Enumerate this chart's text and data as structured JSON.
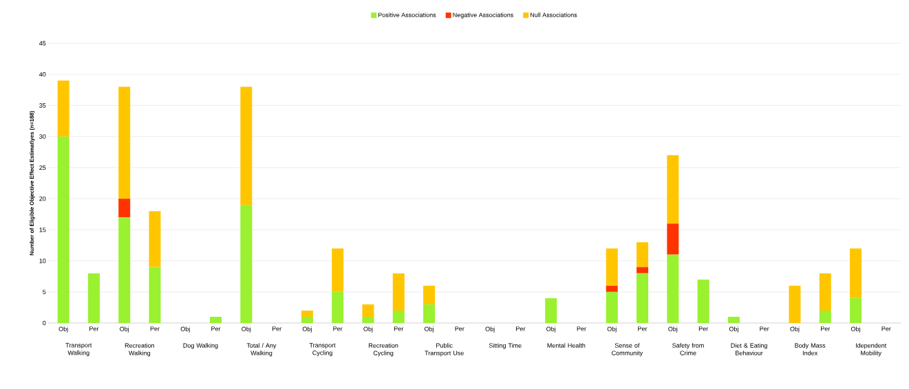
{
  "chart_data": {
    "type": "bar",
    "stacked": true,
    "ylabel": "Number of Eligible Objective Effect Estimat\\yes (n=188)",
    "categories": [
      "Obj",
      "Per",
      "Obj",
      "Per",
      "Obj",
      "Per",
      "Obj",
      "Per",
      "Obj",
      "Per",
      "Obj",
      "Per",
      "Obj",
      "Per",
      "Obj",
      "Per",
      "Obj",
      "Per",
      "Obj",
      "Per",
      "Obj",
      "Per",
      "Obj",
      "Per",
      "Obj",
      "Per",
      "Obj",
      "Per"
    ],
    "series": [
      {
        "name": "Positive Associations",
        "color": "#99f12f",
        "values": [
          30,
          8,
          17,
          9,
          0,
          1,
          19,
          0,
          1,
          5,
          1,
          2,
          3,
          0,
          0,
          0,
          4,
          0,
          5,
          8,
          11,
          7,
          1,
          0,
          0,
          2,
          4,
          0
        ]
      },
      {
        "name": "Negative Associations",
        "color": "#ff3300",
        "values": [
          0,
          0,
          3,
          0,
          0,
          0,
          0,
          0,
          0,
          0,
          0,
          0,
          0,
          0,
          0,
          0,
          0,
          0,
          1,
          1,
          5,
          0,
          0,
          0,
          0,
          0,
          0,
          0
        ]
      },
      {
        "name": "Null Associations",
        "color": "#ffc600",
        "values": [
          9,
          0,
          18,
          9,
          0,
          0,
          19,
          0,
          1,
          7,
          2,
          6,
          3,
          0,
          0,
          0,
          0,
          0,
          6,
          4,
          11,
          0,
          0,
          0,
          6,
          6,
          8,
          0
        ]
      }
    ],
    "annotations": [
      "Transport Walking",
      "Recreation Walking",
      "Dog Walking",
      "Total / Any Walking",
      "Transport Cycling",
      "Recreation Cycling",
      "Public Transport Use",
      "Sitting Time",
      "Mental Health",
      "Sense of Community",
      "Safety from Crime",
      "Diet & Eating Behaviour",
      "Body Mass Index",
      "Idependent Mobility"
    ],
    "ylim": [
      0,
      45
    ],
    "yticks": [
      0,
      5,
      10,
      15,
      20,
      25,
      30,
      35,
      40,
      45
    ],
    "grid": "y",
    "legend": "top"
  }
}
